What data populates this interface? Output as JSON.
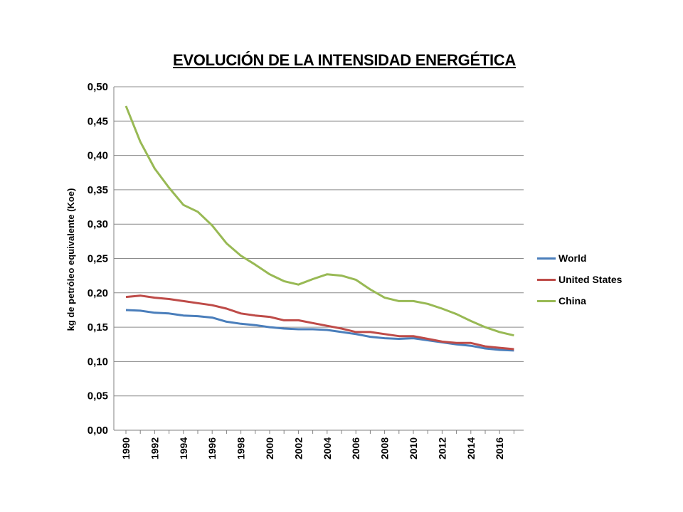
{
  "chart_data": {
    "type": "line",
    "title": "EVOLUCIÓN DE LA INTENSIDAD ENERGÉTICA",
    "xlabel": "",
    "ylabel": "kg de petróleo equivalente (Koe)",
    "ylim": [
      0,
      0.5
    ],
    "yticks": [
      "0,00",
      "0,05",
      "0,10",
      "0,15",
      "0,20",
      "0,25",
      "0,30",
      "0,35",
      "0,40",
      "0,45",
      "0,50"
    ],
    "x": [
      1990,
      1991,
      1992,
      1993,
      1994,
      1995,
      1996,
      1997,
      1998,
      1999,
      2000,
      2001,
      2002,
      2003,
      2004,
      2005,
      2006,
      2007,
      2008,
      2009,
      2010,
      2011,
      2012,
      2013,
      2014,
      2015,
      2016,
      2017
    ],
    "xtick_labels": [
      "1990",
      "1992",
      "1994",
      "1996",
      "1998",
      "2000",
      "2002",
      "2004",
      "2006",
      "2008",
      "2010",
      "2012",
      "2014",
      "2016"
    ],
    "grid": true,
    "legend_position": "right",
    "series": [
      {
        "name": "World",
        "color": "#4a7ebb",
        "values": [
          0.175,
          0.174,
          0.171,
          0.17,
          0.167,
          0.166,
          0.164,
          0.158,
          0.155,
          0.153,
          0.15,
          0.148,
          0.147,
          0.147,
          0.146,
          0.143,
          0.14,
          0.136,
          0.134,
          0.133,
          0.134,
          0.131,
          0.128,
          0.125,
          0.123,
          0.119,
          0.117,
          0.116
        ]
      },
      {
        "name": "United States",
        "color": "#be4b48",
        "values": [
          0.194,
          0.196,
          0.193,
          0.191,
          0.188,
          0.185,
          0.182,
          0.177,
          0.17,
          0.167,
          0.165,
          0.16,
          0.16,
          0.156,
          0.152,
          0.148,
          0.143,
          0.143,
          0.14,
          0.137,
          0.137,
          0.133,
          0.129,
          0.127,
          0.127,
          0.122,
          0.12,
          0.118
        ]
      },
      {
        "name": "China",
        "color": "#98b954",
        "values": [
          0.472,
          0.42,
          0.381,
          0.353,
          0.328,
          0.318,
          0.298,
          0.272,
          0.254,
          0.241,
          0.227,
          0.217,
          0.212,
          0.22,
          0.227,
          0.225,
          0.219,
          0.205,
          0.193,
          0.188,
          0.188,
          0.184,
          0.177,
          0.169,
          0.159,
          0.15,
          0.143,
          0.138
        ]
      }
    ]
  }
}
